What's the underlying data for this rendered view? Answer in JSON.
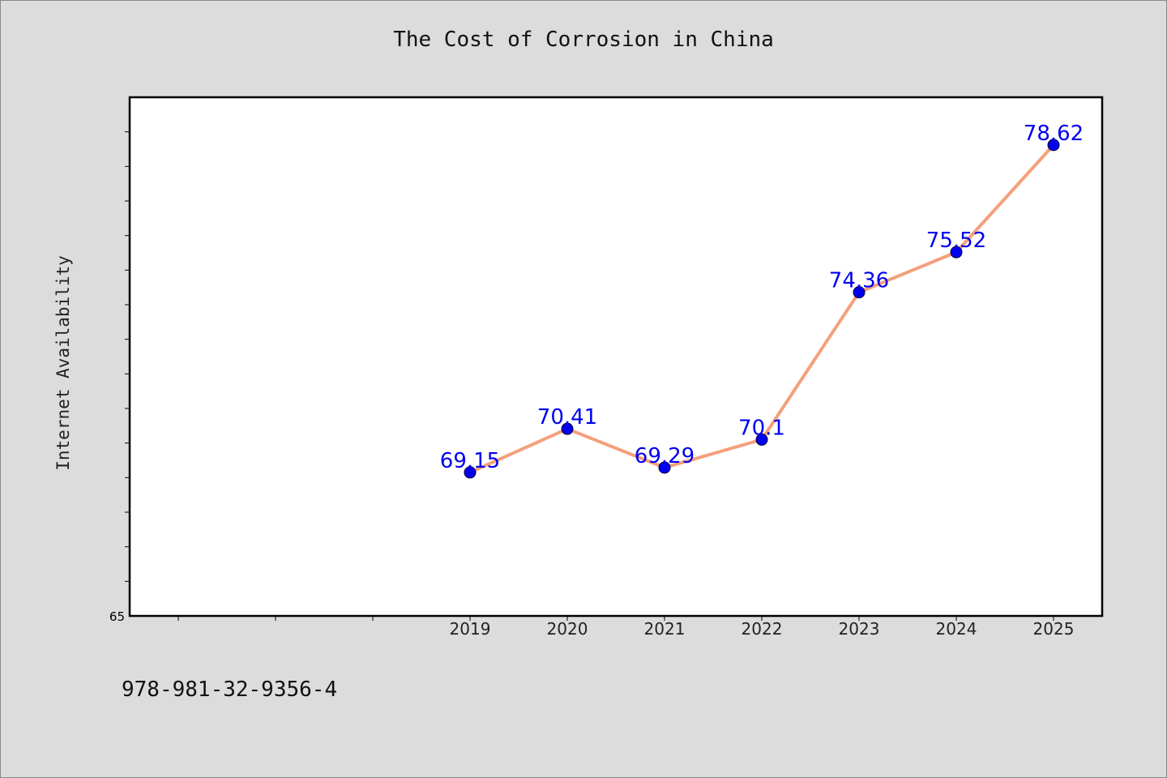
{
  "colors": {
    "background": "#dcdcdc",
    "plot_background": "#ffffff",
    "line": "#f4a07c",
    "marker": "#0000ee",
    "data_label": "#0000ee"
  },
  "footer": {
    "isbn": "978-981-32-9356-4"
  },
  "chart_data": {
    "type": "line",
    "title": "The Cost of Corrosion in China",
    "xlabel": "",
    "ylabel": "Internet Availability",
    "categories": [
      "2019",
      "2020",
      "2021",
      "2022",
      "2023",
      "2024",
      "2025"
    ],
    "series": [
      {
        "values": [
          69.15,
          70.41,
          69.29,
          70.1,
          74.36,
          75.52,
          78.62
        ],
        "data_labels": [
          "69.15",
          "70.41",
          "69.29",
          "70.1",
          "74.36",
          "75.52",
          "78.62"
        ]
      }
    ],
    "y_tick_labels": [
      "65"
    ],
    "ylim": [
      65,
      80
    ],
    "grid": false,
    "legend": "none"
  }
}
